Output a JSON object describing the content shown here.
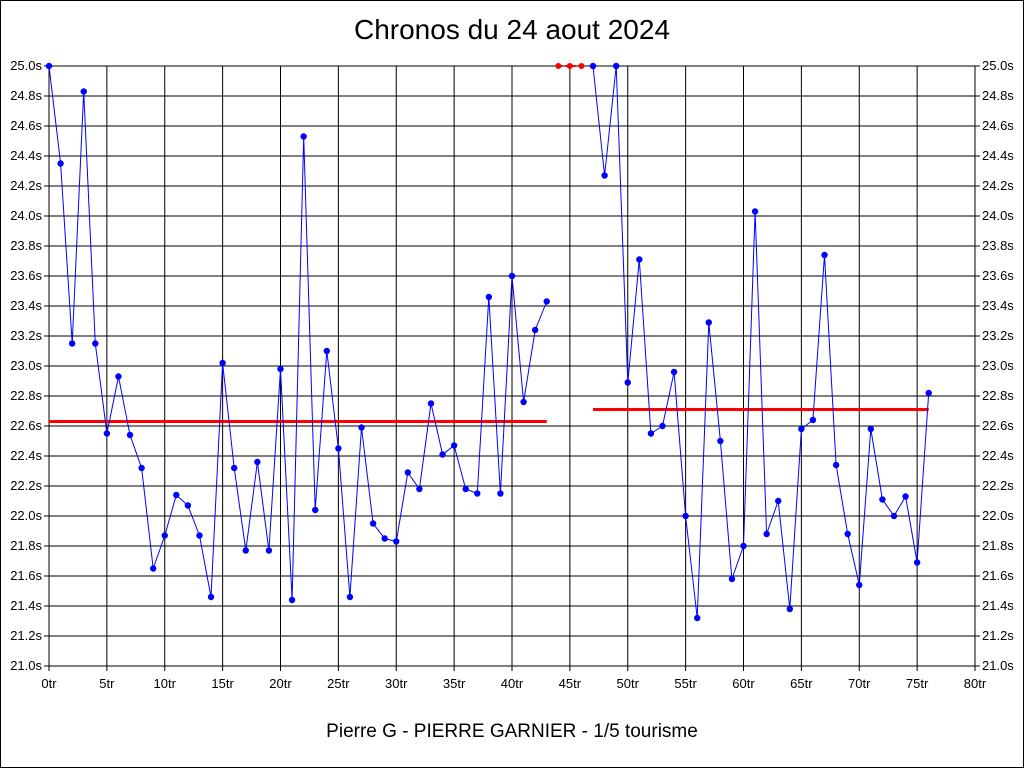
{
  "page": {
    "title": "Chronos du 24 aout 2024",
    "footer": "Pierre G - PIERRE GARNIER - 1/5 tourisme"
  },
  "chart_data": {
    "type": "line",
    "title": "Chronos du 24 aout 2024",
    "subtitle": "Pierre G - PIERRE GARNIER - 1/5 tourisme",
    "xlabel": "",
    "ylabel": "",
    "xlim": [
      0,
      80
    ],
    "ylim": [
      21.0,
      25.0
    ],
    "x_ticks": [
      "0tr",
      "5tr",
      "10tr",
      "15tr",
      "20tr",
      "25tr",
      "30tr",
      "35tr",
      "40tr",
      "45tr",
      "50tr",
      "55tr",
      "60tr",
      "65tr",
      "70tr",
      "75tr",
      "80tr"
    ],
    "y_ticks": [
      "21.0s",
      "21.2s",
      "21.4s",
      "21.6s",
      "21.8s",
      "22.0s",
      "22.2s",
      "22.4s",
      "22.6s",
      "22.8s",
      "23.0s",
      "23.2s",
      "23.4s",
      "23.6s",
      "23.8s",
      "24.0s",
      "24.2s",
      "24.4s",
      "24.6s",
      "24.8s",
      "25.0s"
    ],
    "grid": true,
    "colors": {
      "series": "#0000ff",
      "average": "#ff0000",
      "capped": "#ff0000",
      "grid": "#000000"
    },
    "series": [
      {
        "segment": 1,
        "points": [
          [
            0,
            25.0
          ],
          [
            1,
            24.35
          ],
          [
            2,
            23.15
          ],
          [
            3,
            24.83
          ],
          [
            4,
            23.15
          ],
          [
            5,
            22.55
          ],
          [
            6,
            22.93
          ],
          [
            7,
            22.54
          ],
          [
            8,
            22.32
          ],
          [
            9,
            21.65
          ],
          [
            10,
            21.87
          ],
          [
            11,
            22.14
          ],
          [
            12,
            22.07
          ],
          [
            13,
            21.87
          ],
          [
            14,
            21.46
          ],
          [
            15,
            23.02
          ],
          [
            16,
            22.32
          ],
          [
            17,
            21.77
          ],
          [
            18,
            22.36
          ],
          [
            19,
            21.77
          ],
          [
            20,
            22.98
          ],
          [
            21,
            21.44
          ],
          [
            22,
            24.53
          ],
          [
            23,
            22.04
          ],
          [
            24,
            23.1
          ],
          [
            25,
            22.45
          ],
          [
            26,
            21.46
          ],
          [
            27,
            22.59
          ],
          [
            28,
            21.95
          ],
          [
            29,
            21.85
          ],
          [
            30,
            21.83
          ],
          [
            31,
            22.29
          ],
          [
            32,
            22.18
          ],
          [
            33,
            22.75
          ],
          [
            34,
            22.41
          ],
          [
            35,
            22.47
          ],
          [
            36,
            22.18
          ],
          [
            37,
            22.15
          ],
          [
            38,
            23.46
          ],
          [
            39,
            22.15
          ],
          [
            40,
            23.6
          ],
          [
            41,
            22.76
          ],
          [
            42,
            23.24
          ],
          [
            43,
            23.43
          ]
        ]
      },
      {
        "segment": 2,
        "points": [
          [
            47,
            25.0
          ],
          [
            48,
            24.27
          ],
          [
            49,
            25.0
          ],
          [
            50,
            22.89
          ],
          [
            51,
            23.71
          ],
          [
            52,
            22.55
          ],
          [
            53,
            22.6
          ],
          [
            54,
            22.96
          ],
          [
            55,
            22.0
          ],
          [
            56,
            21.32
          ],
          [
            57,
            23.29
          ],
          [
            58,
            22.5
          ],
          [
            59,
            21.58
          ],
          [
            60,
            21.8
          ],
          [
            61,
            24.03
          ],
          [
            62,
            21.88
          ],
          [
            63,
            22.1
          ],
          [
            64,
            21.38
          ],
          [
            65,
            22.58
          ],
          [
            66,
            22.64
          ],
          [
            67,
            23.74
          ],
          [
            68,
            22.34
          ],
          [
            69,
            21.88
          ],
          [
            70,
            21.54
          ],
          [
            71,
            22.58
          ],
          [
            72,
            22.11
          ],
          [
            73,
            22.0
          ],
          [
            74,
            22.13
          ],
          [
            75,
            21.69
          ],
          [
            76,
            22.82
          ]
        ]
      }
    ],
    "capped_points": [
      [
        44,
        25.0
      ],
      [
        45,
        25.0
      ],
      [
        46,
        25.0
      ]
    ],
    "averages": [
      {
        "from": 0,
        "to": 43,
        "value": 22.63
      },
      {
        "from": 47,
        "to": 76,
        "value": 22.71
      }
    ]
  }
}
